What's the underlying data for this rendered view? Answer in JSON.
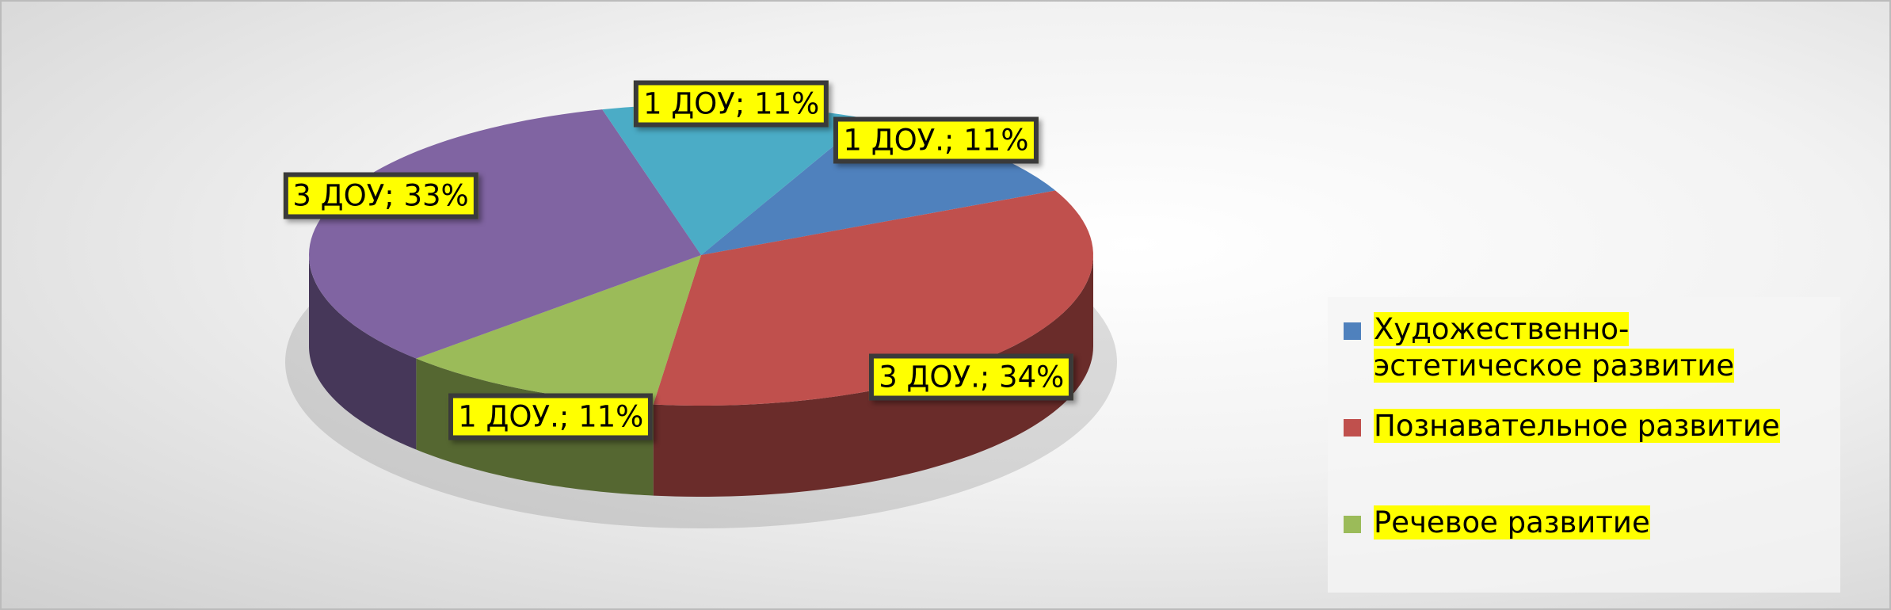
{
  "chart_data": {
    "type": "pie3d",
    "categories": [
      "Художественно-эстетическое развитие",
      "Познавательное развитие",
      "Речевое развитие",
      null,
      null
    ],
    "values": [
      11,
      34,
      11,
      33,
      11
    ],
    "value_labels": [
      "1 ДОУ.; 11%",
      "3 ДОУ.; 34%",
      "1 ДОУ.; 11%",
      "3 ДОУ; 33%",
      "1 ДОУ; 11%"
    ],
    "colors": [
      "#4f81bd",
      "#c0504d",
      "#9bbb59",
      "#8064a2",
      "#4bacc6"
    ],
    "legend": "right"
  }
}
